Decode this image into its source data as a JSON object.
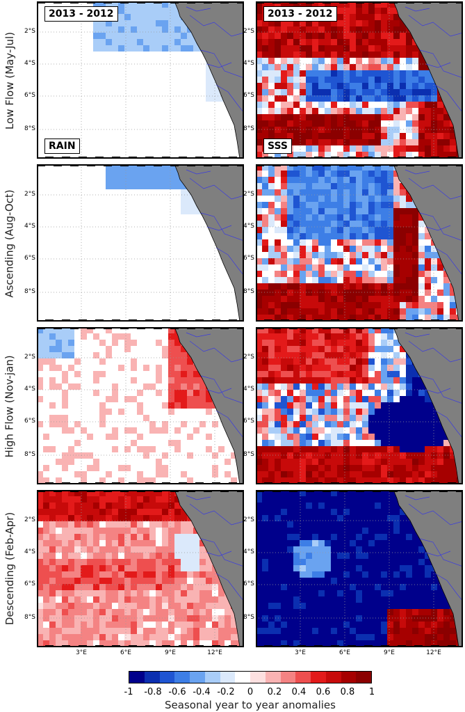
{
  "rows": [
    {
      "label": "Low Flow (May-Jul)"
    },
    {
      "label": "Ascending (Aug-Oct)"
    },
    {
      "label": "High Flow (Nov-jan)"
    },
    {
      "label": "Descending (Feb-Apr)"
    }
  ],
  "panel_tags": {
    "period": "2013 - 2012",
    "rain": "RAIN",
    "sss": "SSS"
  },
  "lat_ticks": [
    "2°S",
    "4°S",
    "6°S",
    "8°S"
  ],
  "lon_ticks": [
    "3°E",
    "6°E",
    "9°E",
    "12°E"
  ],
  "colorbar": {
    "title": "Seasonal year to year anomalies",
    "ticks": [
      "-1",
      "-0.8",
      "-0.6",
      "-0.4",
      "-0.2",
      "0",
      "0.2",
      "0.4",
      "0.6",
      "0.8",
      "1"
    ],
    "min": -1,
    "max": 1,
    "colors": [
      "#00008b",
      "#0b2fb0",
      "#1f55d2",
      "#3d7ee6",
      "#6aa3f0",
      "#a9cdf8",
      "#dbe9fb",
      "#ffffff",
      "#fde0e0",
      "#f9b3b3",
      "#f48383",
      "#ee4f4f",
      "#e31a1a",
      "#c70a0a",
      "#a60000",
      "#8b0000"
    ]
  },
  "land_color": "#7f7f7f",
  "river_color": "#3a3adf"
}
